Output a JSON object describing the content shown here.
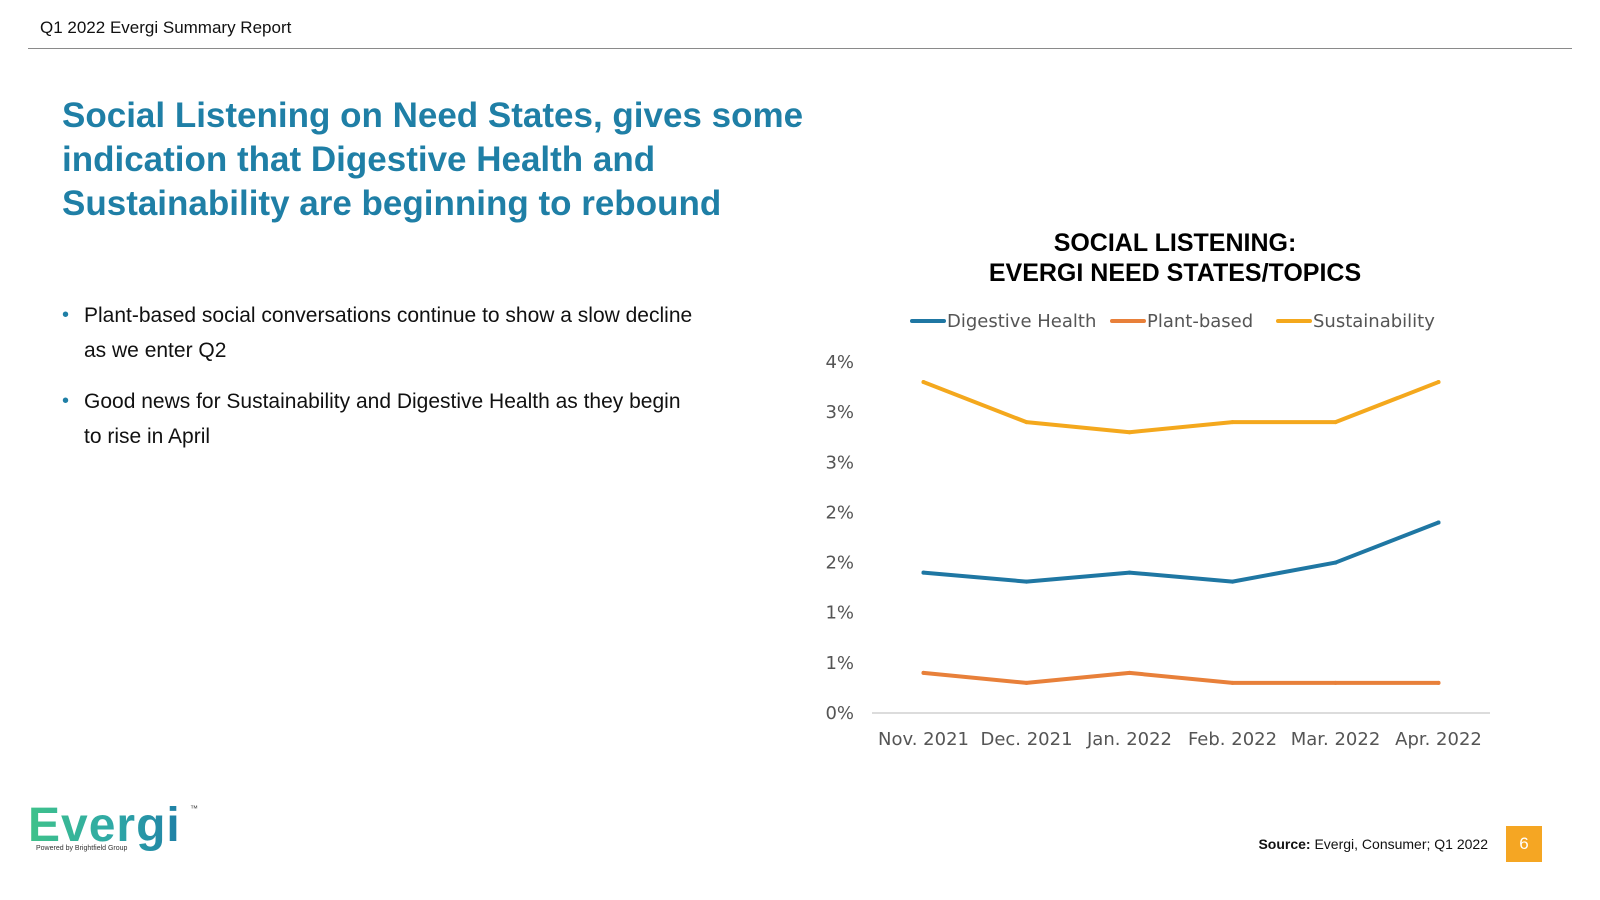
{
  "header": {
    "report_title": "Q1 2022 Evergi Summary Report"
  },
  "headline": "Social Listening on Need States, gives some indication that Digestive Health and Sustainability are beginning to rebound",
  "bullets": [
    "Plant-based social conversations continue to show a slow decline as we enter Q2",
    "Good news for Sustainability and Digestive Health as they begin to rise in April"
  ],
  "chart_data": {
    "type": "line",
    "title_lines": [
      "SOCIAL LISTENING:",
      "EVERGI NEED STATES/TOPICS"
    ],
    "categories": [
      "Nov. 2021",
      "Dec. 2021",
      "Jan. 2022",
      "Feb. 2022",
      "Mar. 2022",
      "Apr. 2022"
    ],
    "series": [
      {
        "name": "Digestive Health",
        "color": "#1f77a3",
        "values": [
          1.4,
          1.31,
          1.4,
          1.31,
          1.5,
          1.9
        ]
      },
      {
        "name": "Plant-based",
        "color": "#e8803a",
        "values": [
          0.4,
          0.3,
          0.4,
          0.3,
          0.3,
          0.3
        ]
      },
      {
        "name": "Sustainability",
        "color": "#f4a81d",
        "values": [
          3.3,
          2.9,
          2.8,
          2.9,
          2.9,
          3.3
        ]
      }
    ],
    "ylim": [
      0,
      3.5
    ],
    "ytick_values": [
      0,
      0.5,
      1.0,
      1.5,
      2.0,
      2.5,
      3.0,
      3.5
    ],
    "ytick_labels": [
      "0%",
      "1%",
      "1%",
      "2%",
      "2%",
      "3%",
      "3%",
      "4%"
    ],
    "legend_position": "top",
    "grid": false,
    "xlabel": "",
    "ylabel": ""
  },
  "logo": {
    "wordmark": "Evergi",
    "tm": "™",
    "tagline": "Powered by Brightfield Group"
  },
  "footer": {
    "source_label": "Source:",
    "source_text": " Evergi, Consumer; Q1 2022",
    "page_number": "6"
  }
}
